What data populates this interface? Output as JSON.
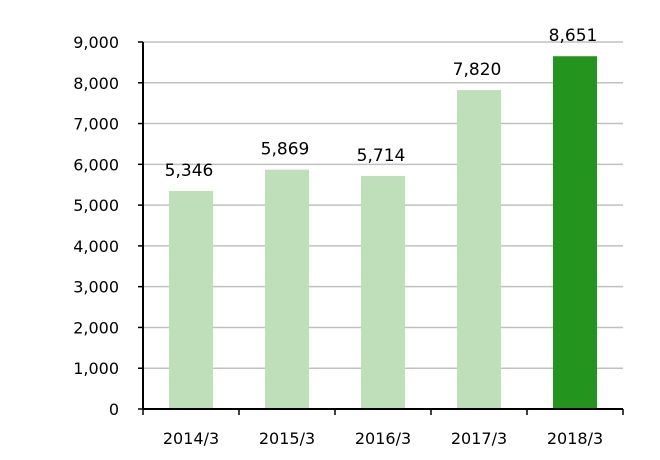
{
  "chart_data": {
    "type": "bar",
    "title": "",
    "xlabel": "",
    "ylabel": "",
    "categories": [
      "2014/3",
      "2015/3",
      "2016/3",
      "2017/3",
      "2018/3"
    ],
    "values": [
      5346,
      5869,
      5714,
      7820,
      8651
    ],
    "data_labels": [
      "5,346",
      "5,869",
      "5,714",
      "7,820",
      "8,651"
    ],
    "ylim": [
      0,
      9000
    ],
    "yticks": [
      0,
      1000,
      2000,
      3000,
      4000,
      5000,
      6000,
      7000,
      8000,
      9000
    ],
    "ytick_labels": [
      "0",
      "1,000",
      "2,000",
      "3,000",
      "4,000",
      "5,000",
      "6,000",
      "7,000",
      "8,000",
      "9,000"
    ],
    "grid": true,
    "legend": "none",
    "colors": {
      "bar_default": "#bfdfbb",
      "bar_highlight": "#23951e",
      "grid": "#c0c0c0",
      "axis": "#000000"
    },
    "highlight_index": 4
  }
}
